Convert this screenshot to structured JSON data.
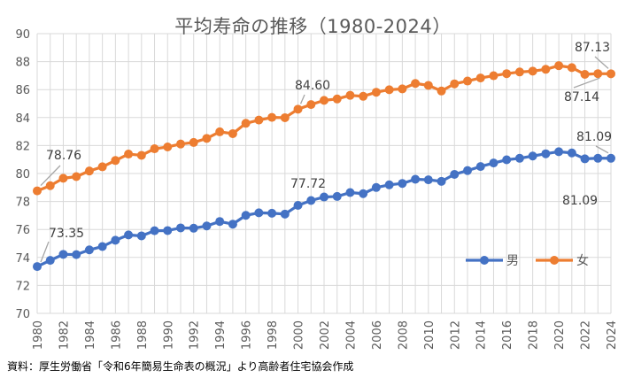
{
  "chart_data": {
    "type": "line",
    "title": "平均寿命の推移（1980-2024）",
    "xlabel": "",
    "ylabel": "",
    "x": [
      1980,
      1981,
      1982,
      1983,
      1984,
      1985,
      1986,
      1987,
      1988,
      1989,
      1990,
      1991,
      1992,
      1993,
      1994,
      1995,
      1996,
      1997,
      1998,
      1999,
      2000,
      2001,
      2002,
      2003,
      2004,
      2005,
      2006,
      2007,
      2008,
      2009,
      2010,
      2011,
      2012,
      2013,
      2014,
      2015,
      2016,
      2017,
      2018,
      2019,
      2020,
      2021,
      2022,
      2023,
      2024
    ],
    "x_tick_labels": [
      "1980",
      "1982",
      "1984",
      "1986",
      "1988",
      "1990",
      "1992",
      "1994",
      "1996",
      "1998",
      "2000",
      "2002",
      "2004",
      "2006",
      "2008",
      "2010",
      "2012",
      "2014",
      "2016",
      "2018",
      "2020",
      "2022",
      "2024"
    ],
    "ylim": [
      70,
      90
    ],
    "y_tick_labels": [
      "70",
      "72",
      "74",
      "76",
      "78",
      "80",
      "82",
      "84",
      "86",
      "88",
      "90"
    ],
    "grid": true,
    "legend_position": "right",
    "series": [
      {
        "name": "男",
        "color": "#4472C4",
        "values": [
          73.35,
          73.79,
          74.22,
          74.2,
          74.54,
          74.78,
          75.23,
          75.61,
          75.54,
          75.91,
          75.92,
          76.11,
          76.09,
          76.25,
          76.57,
          76.38,
          77.01,
          77.19,
          77.16,
          77.1,
          77.72,
          78.07,
          78.32,
          78.36,
          78.64,
          78.56,
          79.0,
          79.19,
          79.29,
          79.59,
          79.55,
          79.44,
          79.94,
          80.21,
          80.5,
          80.75,
          80.98,
          81.09,
          81.25,
          81.41,
          81.56,
          81.47,
          81.05,
          81.09,
          81.09
        ],
        "labeled_points": [
          {
            "year": 1980,
            "text": "73.35"
          },
          {
            "year": 2000,
            "text": "77.72"
          },
          {
            "year": 2023,
            "text": "81.09"
          },
          {
            "year": 2024,
            "text": "81.09"
          }
        ]
      },
      {
        "name": "女",
        "color": "#ED7D31",
        "values": [
          78.76,
          79.13,
          79.66,
          79.78,
          80.18,
          80.48,
          80.93,
          81.39,
          81.3,
          81.77,
          81.9,
          82.11,
          82.22,
          82.51,
          82.98,
          82.85,
          83.59,
          83.82,
          84.01,
          83.99,
          84.6,
          84.93,
          85.23,
          85.33,
          85.59,
          85.52,
          85.81,
          85.99,
          86.05,
          86.44,
          86.3,
          85.9,
          86.41,
          86.61,
          86.83,
          86.99,
          87.14,
          87.26,
          87.32,
          87.45,
          87.71,
          87.57,
          87.09,
          87.14,
          87.13
        ],
        "labeled_points": [
          {
            "year": 1980,
            "text": "78.76"
          },
          {
            "year": 2000,
            "text": "84.60"
          },
          {
            "year": 2023,
            "text": "87.14"
          },
          {
            "year": 2024,
            "text": "87.13"
          }
        ]
      }
    ]
  },
  "source_note": "資料：厚生労働省「令和6年簡易生命表の概況」より高齢者住宅協会作成"
}
